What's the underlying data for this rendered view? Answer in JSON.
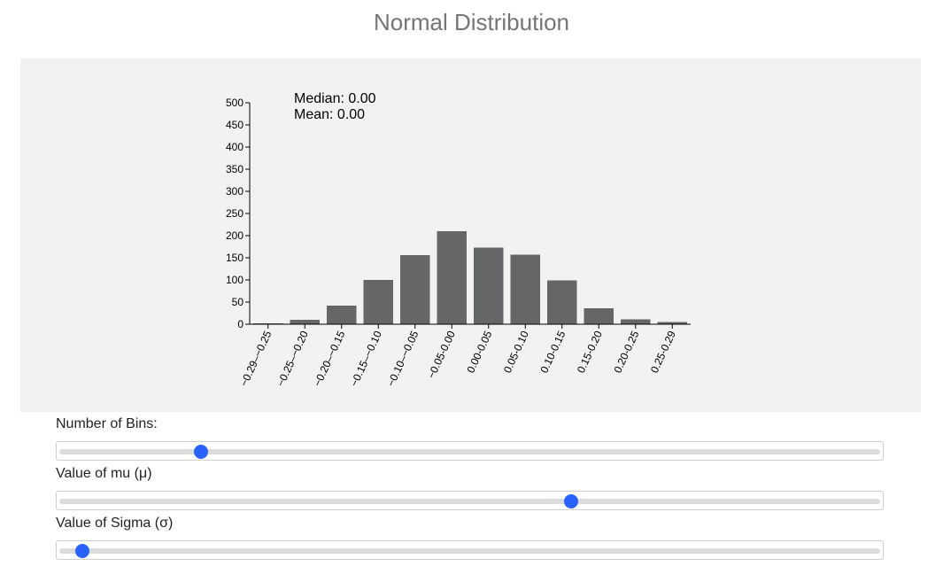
{
  "page": {
    "title": "Normal Distribution"
  },
  "chart_data": {
    "type": "bar",
    "categories": [
      "−0.29–−0.25",
      "−0.25–−0.20",
      "−0.20–−0.15",
      "−0.15–−0.10",
      "−0.10–−0.05",
      "−0.05-0.00",
      "0.00-0.05",
      "0.05-0.10",
      "0.10-0.15",
      "0.15-0.20",
      "0.20-0.25",
      "0.25-0.29"
    ],
    "values": [
      2,
      10,
      42,
      100,
      156,
      210,
      173,
      157,
      99,
      36,
      11,
      5
    ],
    "ylim": [
      0,
      500
    ],
    "yticks": [
      0,
      50,
      100,
      150,
      200,
      250,
      300,
      350,
      400,
      450,
      500
    ],
    "annotations": {
      "median": "Median: 0.00",
      "mean": "Mean: 0.00"
    },
    "bar_color": "#646668",
    "grid": false
  },
  "controls": {
    "bins": {
      "label": "Number of Bins:",
      "value_fraction": 0.173
    },
    "mu": {
      "label": "Value of mu (μ)",
      "value_fraction": 0.623
    },
    "sigma": {
      "label": "Value of Sigma (σ)",
      "value_fraction": 0.028
    },
    "thumb_color": "#2962ff"
  }
}
